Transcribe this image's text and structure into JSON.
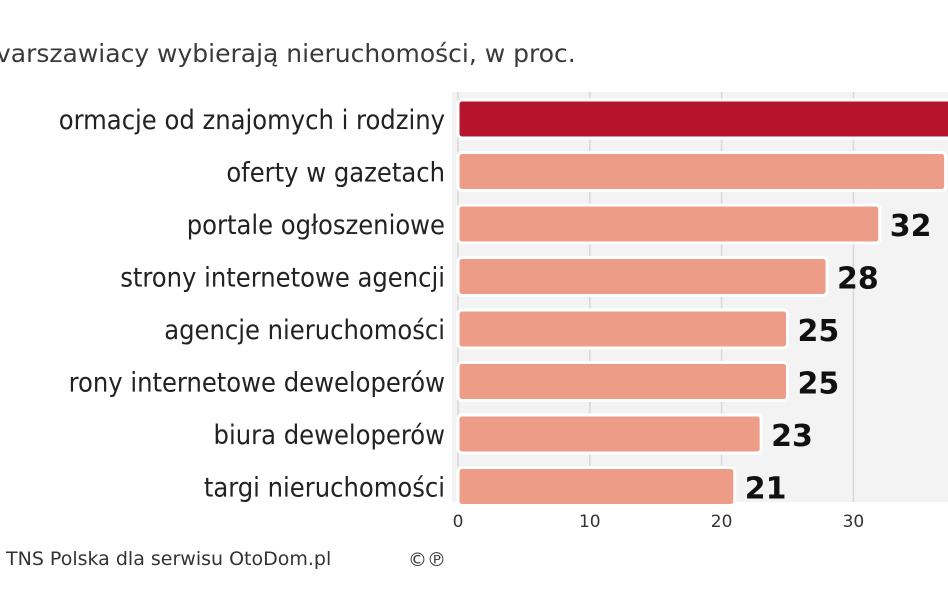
{
  "chart_data": {
    "type": "bar",
    "orientation": "horizontal",
    "title": "varszawiacy wybierają nieruchomości, w proc.",
    "categories": [
      "ormacje od znajomych i rodziny",
      "oferty w gazetach",
      "portale ogłoszeniowe",
      "strony internetowe agencji",
      "agencje nieruchomości",
      "rony internetowe  deweloperów",
      "biura deweloperów",
      "targi nieruchomości"
    ],
    "values": [
      40,
      37,
      32,
      28,
      25,
      25,
      23,
      21
    ],
    "value_labels": [
      "",
      "",
      "32",
      "28",
      "25",
      "25",
      "23",
      "21"
    ],
    "xlim": [
      0,
      37
    ],
    "xticks": [
      0,
      10,
      20,
      30
    ],
    "grid": true,
    "highlight_index": 0,
    "colors": {
      "highlight": "#b5142c",
      "bar": "#ec9c87",
      "bar_border": "#ffffff",
      "grid": "#d8d8d8",
      "panel": "#f3f3f3"
    },
    "source": "TNS Polska dla serwisu OtoDom.pl",
    "copyright_mark": "©℗"
  }
}
